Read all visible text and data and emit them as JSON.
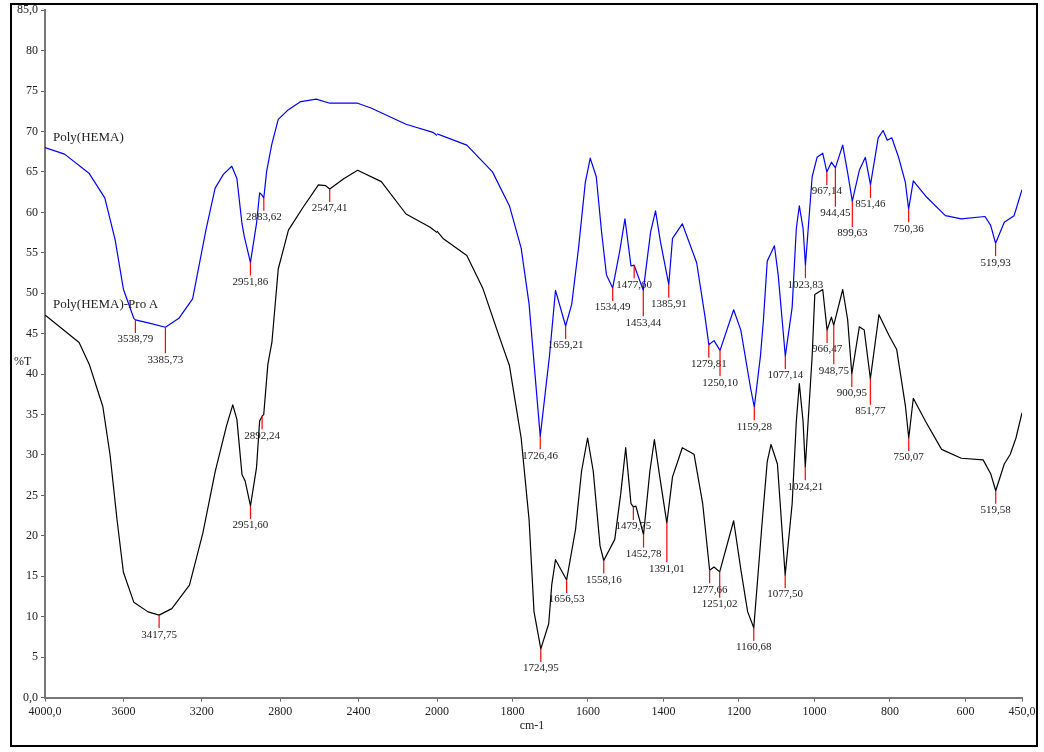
{
  "chart_data": [
    {
      "type": "line",
      "ylabel": "%T",
      "xlim": [
        4000,
        2000
      ],
      "ylim": [
        0,
        85
      ],
      "xticks": [
        {
          "value": 4000,
          "label": "4000,0"
        },
        3600,
        3200,
        2800,
        2400,
        2000
      ],
      "yticks": [
        {
          "value": 0,
          "label": "0,0"
        },
        5,
        10,
        15,
        20,
        25,
        30,
        35,
        40,
        45,
        50,
        55,
        60,
        65,
        70,
        75,
        80,
        {
          "value": 85,
          "label": "85,0"
        }
      ],
      "legend": false,
      "marker": "none",
      "line_style": "solid",
      "series": [
        {
          "name": "Poly(HEMA)",
          "color": "#0000ff",
          "x": [
            4000,
            3900,
            3774,
            3695,
            3642,
            3600,
            3547,
            3538.79,
            3468,
            3385.73,
            3317,
            3247,
            3179,
            3132,
            3090,
            3047,
            3021,
            2995,
            2983,
            2951.86,
            2921,
            2905,
            2895,
            2883.62,
            2869,
            2843,
            2810,
            2758,
            2695,
            2616,
            2547,
            2405,
            2337,
            2158,
            2021,
            2000
          ],
          "values": [
            68.0,
            67.2,
            64.8,
            61.8,
            56.6,
            50.5,
            46.9,
            46.7,
            46.3,
            45.8,
            46.9,
            49.3,
            57.8,
            63.0,
            64.7,
            65.7,
            64.2,
            58.6,
            57.0,
            53.8,
            58.6,
            62.4,
            62.2,
            61.8,
            65.1,
            68.4,
            71.5,
            72.7,
            73.7,
            74.0,
            73.5,
            73.5,
            72.9,
            70.9,
            69.9,
            69.5
          ]
        },
        {
          "name": "Poly(HEMA)-Pro A",
          "color": "#000000",
          "x": [
            4000,
            3826,
            3774,
            3705,
            3668,
            3632,
            3600,
            3547,
            3474,
            3417.75,
            3353,
            3263,
            3195,
            3132,
            3074,
            3042,
            3021,
            2995,
            2979,
            2951.6,
            2921,
            2905,
            2892.24,
            2884,
            2863,
            2842,
            2810,
            2758,
            2684,
            2605,
            2568,
            2547.41,
            2474,
            2405,
            2284,
            2158,
            2037,
            2000
          ],
          "values": [
            47.3,
            43.9,
            41.2,
            36.0,
            30.0,
            21.9,
            15.5,
            11.8,
            10.6,
            10.2,
            11.0,
            13.9,
            20.3,
            27.9,
            33.6,
            36.2,
            34.4,
            27.6,
            26.8,
            23.7,
            28.4,
            34.2,
            34.8,
            35.0,
            41.2,
            44.0,
            53.0,
            57.8,
            60.6,
            63.4,
            63.3,
            62.9,
            64.2,
            65.2,
            63.8,
            59.8,
            58.2,
            57.5
          ]
        }
      ],
      "annotations": [
        {
          "text": "3538,79",
          "x": 3538.79,
          "y": 46.7
        },
        {
          "text": "3385,73",
          "x": 3385.73,
          "y": 45.8
        },
        {
          "text": "2951,86",
          "x": 2951.86,
          "y": 53.8
        },
        {
          "text": "2883,62",
          "x": 2883.62,
          "y": 61.8
        },
        {
          "text": "2547,41",
          "x": 2547.41,
          "y": 62.9
        },
        {
          "text": "3417,75",
          "x": 3417.75,
          "y": 10.2
        },
        {
          "text": "2951,60",
          "x": 2951.6,
          "y": 23.7
        },
        {
          "text": "2892,24",
          "x": 2892.24,
          "y": 34.8
        }
      ]
    },
    {
      "type": "line",
      "xlabel": "cm-1",
      "xlim": [
        2000,
        450
      ],
      "ylim": [
        0,
        85
      ],
      "tick_labels": "x",
      "xticks": [
        1800,
        1600,
        1400,
        1200,
        1000,
        800,
        600,
        {
          "value": 450,
          "label": "450,0"
        }
      ],
      "legend": false,
      "marker": "none",
      "line_style": "solid",
      "series": [
        {
          "color": "#0000ff",
          "x": [
            2000,
            1921,
            1853,
            1808,
            1777,
            1756,
            1726.46,
            1702,
            1686,
            1659.21,
            1643,
            1625,
            1607,
            1594,
            1578,
            1564,
            1551,
            1534.49,
            1516,
            1502,
            1486,
            1477.6,
            1453.44,
            1434,
            1421,
            1408,
            1385.91,
            1376,
            1350,
            1312,
            1290,
            1279.81,
            1266,
            1250.1,
            1214,
            1195,
            1169,
            1159.28,
            1143,
            1135,
            1125,
            1106,
            1096,
            1077.14,
            1059,
            1048,
            1040,
            1030,
            1023.83,
            1006,
            993,
            978,
            967.14,
            955,
            944.45,
            925,
            912,
            899.63,
            881,
            865,
            851.46,
            831,
            818,
            807,
            795,
            777,
            759,
            750.36,
            738,
            705,
            653,
            611,
            548,
            533,
            519.93,
            497,
            471,
            450
          ],
          "values": [
            69.5,
            68.1,
            64.8,
            60.6,
            55.4,
            48.5,
            32.2,
            42.1,
            50.2,
            45.8,
            48.5,
            55.4,
            63.5,
            66.5,
            64.2,
            57.4,
            52.1,
            50.5,
            55.0,
            59.0,
            53.2,
            53.3,
            50.2,
            57.4,
            60.0,
            56.2,
            50.9,
            56.6,
            58.4,
            53.6,
            47.0,
            43.5,
            44.0,
            42.8,
            47.8,
            45.3,
            38.1,
            35.8,
            42.1,
            46.6,
            53.8,
            55.7,
            52.1,
            42.1,
            48.1,
            57.8,
            60.6,
            57.8,
            53.3,
            64.2,
            66.6,
            67.1,
            64.8,
            66.0,
            65.3,
            68.1,
            64.7,
            61.2,
            65.0,
            66.6,
            63.2,
            69.0,
            69.9,
            68.7,
            69.0,
            66.6,
            63.5,
            60.2,
            63.7,
            61.8,
            59.4,
            59.0,
            59.3,
            58.2,
            56.0,
            58.6,
            59.4,
            62.6
          ]
        },
        {
          "color": "#000000",
          "x": [
            2000,
            1984,
            1921,
            1879,
            1835,
            1808,
            1777,
            1756,
            1743,
            1724.95,
            1704,
            1696,
            1686,
            1656.53,
            1633,
            1617,
            1601,
            1586,
            1568,
            1558.16,
            1529,
            1513,
            1500,
            1486,
            1479.75,
            1473,
            1452.78,
            1436,
            1424,
            1411,
            1391.01,
            1376,
            1350,
            1319,
            1296,
            1277.66,
            1266,
            1251.02,
            1214,
            1195,
            1177,
            1160.68,
            1138,
            1125,
            1115,
            1098,
            1077.5,
            1059,
            1048,
            1040,
            1030,
            1024.21,
            1006,
            999,
            978,
            966.47,
            955,
            948.75,
            925,
            912,
            900.95,
            881,
            868,
            851.77,
            829,
            803,
            782,
            759,
            750.07,
            738,
            705,
            663,
            611,
            553,
            533,
            519.58,
            497,
            481,
            466,
            450
          ],
          "values": [
            57.5,
            56.6,
            54.5,
            50.5,
            44.5,
            40.9,
            32.0,
            21.9,
            10.6,
            6.0,
            9.1,
            13.9,
            17.0,
            14.5,
            20.7,
            27.9,
            32.0,
            27.9,
            18.7,
            16.9,
            19.5,
            25.2,
            30.8,
            23.9,
            23.5,
            23.6,
            20.1,
            27.9,
            31.8,
            27.6,
            21.5,
            27.2,
            30.8,
            30.0,
            23.9,
            15.7,
            16.1,
            15.5,
            21.8,
            15.8,
            10.6,
            8.6,
            21.9,
            29.1,
            31.2,
            28.8,
            15.1,
            23.9,
            34.0,
            38.7,
            34.0,
            28.4,
            42.1,
            49.7,
            50.3,
            45.3,
            46.9,
            45.9,
            50.3,
            46.6,
            39.9,
            45.7,
            45.3,
            39.3,
            47.2,
            44.7,
            42.9,
            36.0,
            32.0,
            36.9,
            34.0,
            30.6,
            29.5,
            29.3,
            27.6,
            25.5,
            28.8,
            30.0,
            32.0,
            35.1
          ]
        }
      ],
      "annotations": [
        {
          "text": "1726,46",
          "x": 1726.46,
          "y": 32.2
        },
        {
          "text": "1659,21",
          "x": 1659.21,
          "y": 45.8
        },
        {
          "text": "1534,49",
          "x": 1534.49,
          "y": 50.5
        },
        {
          "text": "1477,60",
          "x": 1477.6,
          "y": 53.3
        },
        {
          "text": "1453,44",
          "x": 1453.44,
          "y": 50.2
        },
        {
          "text": "1385,91",
          "x": 1385.91,
          "y": 50.9
        },
        {
          "text": "1279,81",
          "x": 1279.81,
          "y": 43.5
        },
        {
          "text": "1250,10",
          "x": 1250.1,
          "y": 42.8
        },
        {
          "text": "1159,28",
          "x": 1159.28,
          "y": 35.8
        },
        {
          "text": "1077,14",
          "x": 1077.14,
          "y": 42.1
        },
        {
          "text": "1023,83",
          "x": 1023.83,
          "y": 53.3
        },
        {
          "text": "967,14",
          "x": 967.14,
          "y": 64.8
        },
        {
          "text": "944,45",
          "x": 944.45,
          "y": 65.3
        },
        {
          "text": "899,63",
          "x": 899.63,
          "y": 61.2
        },
        {
          "text": "851,46",
          "x": 851.46,
          "y": 63.2
        },
        {
          "text": "750,36",
          "x": 750.36,
          "y": 60.2
        },
        {
          "text": "519,93",
          "x": 519.93,
          "y": 56.0
        },
        {
          "text": "1724,95",
          "x": 1724.95,
          "y": 6.0
        },
        {
          "text": "1656,53",
          "x": 1656.53,
          "y": 14.5
        },
        {
          "text": "1558,16",
          "x": 1558.16,
          "y": 16.9
        },
        {
          "text": "1479,75",
          "x": 1479.75,
          "y": 23.5
        },
        {
          "text": "1452,78",
          "x": 1452.78,
          "y": 20.1
        },
        {
          "text": "1391,01",
          "x": 1391.01,
          "y": 21.5
        },
        {
          "text": "1277,66",
          "x": 1277.66,
          "y": 15.7
        },
        {
          "text": "1251,02",
          "x": 1251.02,
          "y": 15.5
        },
        {
          "text": "1160,68",
          "x": 1160.68,
          "y": 8.6
        },
        {
          "text": "1077,50",
          "x": 1077.5,
          "y": 15.1
        },
        {
          "text": "1024,21",
          "x": 1024.21,
          "y": 28.4
        },
        {
          "text": "966,47",
          "x": 966.47,
          "y": 45.3
        },
        {
          "text": "948,75",
          "x": 948.75,
          "y": 45.9
        },
        {
          "text": "900,95",
          "x": 900.95,
          "y": 39.9
        },
        {
          "text": "851,77",
          "x": 851.77,
          "y": 39.3
        },
        {
          "text": "750,07",
          "x": 750.07,
          "y": 32.0
        },
        {
          "text": "519,58",
          "x": 519.58,
          "y": 25.5
        }
      ]
    }
  ]
}
